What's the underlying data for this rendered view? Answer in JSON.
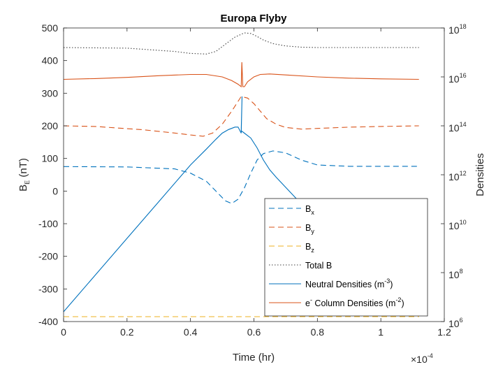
{
  "chart_data": {
    "type": "line",
    "title": "Europa Flyby",
    "xlabel": "Time (hr)",
    "x_exponent_label": "×10",
    "x_exponent_power": "-4",
    "ylabel_main": "B",
    "ylabel_sub": "E",
    "ylabel_unit": " (nT)",
    "ylabel_right": "Densities",
    "xlim": [
      0,
      0.00012
    ],
    "ylim_left": [
      -400,
      500
    ],
    "ylim_right_log10": [
      6,
      18
    ],
    "right_scale": "log",
    "grid": false,
    "legend_position": "bottom-right",
    "x_ticks": [
      {
        "value": 0,
        "label": "0"
      },
      {
        "value": 2e-05,
        "label": "0.2"
      },
      {
        "value": 4e-05,
        "label": "0.4"
      },
      {
        "value": 6e-05,
        "label": "0.6"
      },
      {
        "value": 8e-05,
        "label": "0.8"
      },
      {
        "value": 0.0001,
        "label": "1"
      },
      {
        "value": 0.00012,
        "label": "1.2"
      }
    ],
    "y_ticks_left": [
      {
        "value": 500,
        "label": "500"
      },
      {
        "value": 400,
        "label": "400"
      },
      {
        "value": 300,
        "label": "300"
      },
      {
        "value": 200,
        "label": "200"
      },
      {
        "value": 100,
        "label": "100"
      },
      {
        "value": 0,
        "label": "0"
      },
      {
        "value": -100,
        "label": "-100"
      },
      {
        "value": -200,
        "label": "-200"
      },
      {
        "value": -300,
        "label": "-300"
      },
      {
        "value": -400,
        "label": "-400"
      }
    ],
    "y_ticks_right": [
      {
        "exp": 18,
        "base": "10",
        "power": "18"
      },
      {
        "exp": 16,
        "base": "10",
        "power": "16"
      },
      {
        "exp": 14,
        "base": "10",
        "power": "14"
      },
      {
        "exp": 12,
        "base": "10",
        "power": "12"
      },
      {
        "exp": 10,
        "base": "10",
        "power": "10"
      },
      {
        "exp": 8,
        "base": "10",
        "power": "8"
      },
      {
        "exp": 6,
        "base": "10",
        "power": "6"
      }
    ],
    "series": [
      {
        "name_main": "B",
        "name_sub": "x",
        "name_sub_type": "sub",
        "name_tail": "",
        "axis": "left",
        "color": "#0072BD",
        "dash": "8,5",
        "x": [
          0,
          2e-05,
          3.5e-05,
          4e-05,
          4.5e-05,
          4.8e-05,
          5.1e-05,
          5.3e-05,
          5.5e-05,
          5.7e-05,
          5.9e-05,
          6.1e-05,
          6.3e-05,
          6.6e-05,
          7e-05,
          7.5e-05,
          8e-05,
          9e-05,
          0.0001,
          0.000112
        ],
        "y": [
          75,
          74,
          68,
          55,
          30,
          0,
          -30,
          -38,
          -25,
          10,
          55,
          95,
          115,
          123,
          117,
          95,
          80,
          76,
          76,
          76
        ]
      },
      {
        "name_main": "B",
        "name_sub": "y",
        "name_sub_type": "sub",
        "name_tail": "",
        "axis": "left",
        "color": "#D95319",
        "dash": "8,5",
        "x": [
          0,
          1e-05,
          2.5e-05,
          3.5e-05,
          4e-05,
          4.4e-05,
          4.7e-05,
          5e-05,
          5.3e-05,
          5.5e-05,
          5.6e-05,
          5.8e-05,
          6e-05,
          6.2e-05,
          6.4e-05,
          6.7e-05,
          7e-05,
          7.5e-05,
          8e-05,
          9e-05,
          0.0001,
          0.000112
        ],
        "y": [
          200,
          198,
          188,
          178,
          172,
          168,
          178,
          205,
          245,
          275,
          290,
          285,
          268,
          245,
          222,
          205,
          195,
          190,
          192,
          196,
          198,
          200
        ]
      },
      {
        "name_main": "B",
        "name_sub": "z",
        "name_sub_type": "sub",
        "name_tail": "",
        "axis": "left",
        "color": "#EDB120",
        "dash": "8,5",
        "x": [
          0,
          0.000112
        ],
        "y": [
          -385,
          -385
        ]
      },
      {
        "name_main": "Total B",
        "name_sub": "",
        "name_sub_type": "sub",
        "name_tail": "",
        "axis": "left",
        "color": "#404040",
        "dash": "1.5,2.5",
        "x": [
          0,
          2e-05,
          3.5e-05,
          4e-05,
          4.5e-05,
          4.8e-05,
          5.1e-05,
          5.4e-05,
          5.7e-05,
          5.9e-05,
          6.1e-05,
          6.3e-05,
          6.6e-05,
          7e-05,
          7.5e-05,
          8e-05,
          9e-05,
          0.0001,
          0.000112
        ],
        "y": [
          440,
          438,
          428,
          422,
          420,
          428,
          450,
          472,
          485,
          483,
          474,
          463,
          452,
          445,
          441,
          440,
          440,
          440,
          440
        ]
      },
      {
        "name_main": "Neutral Densities (m",
        "name_sub": "-3",
        "name_sub_type": "sup",
        "name_tail": ")",
        "axis": "right",
        "color": "#0072BD",
        "dash": "",
        "x": [
          0,
          1e-05,
          2e-05,
          3e-05,
          4e-05,
          4.5e-05,
          4.8e-05,
          5e-05,
          5.2e-05,
          5.4e-05,
          5.5e-05,
          5.6e-05,
          5.625e-05,
          5.6e-05,
          5.7e-05,
          5.9e-05,
          6.1e-05,
          6.3e-05,
          6.5e-05,
          6.7e-05,
          7.5e-05,
          8.5e-05,
          9.5e-05,
          0.000105,
          0.000112
        ],
        "y_log10": [
          6.4,
          7.9,
          9.4,
          10.9,
          12.4,
          13.05,
          13.45,
          13.7,
          13.85,
          13.95,
          13.95,
          13.7,
          15.2,
          13.8,
          13.7,
          13.5,
          13.1,
          12.6,
          12.2,
          11.9,
          10.8,
          9.35,
          7.9,
          6.5,
          6.4
        ]
      },
      {
        "name_main": "e",
        "name_sub": "-",
        "name_sub_type": "sup",
        "name_tail": " Column Densities (m",
        "name_sub2": "-2",
        "name_tail2": ")",
        "axis": "right",
        "color": "#D95319",
        "dash": "",
        "x": [
          0,
          1e-05,
          2e-05,
          3e-05,
          4e-05,
          4.5e-05,
          5e-05,
          5.3e-05,
          5.5e-05,
          5.6e-05,
          5.62e-05,
          5.65e-05,
          5.7e-05,
          5.8e-05,
          6e-05,
          6.2e-05,
          6.5e-05,
          7e-05,
          8e-05,
          9e-05,
          0.0001,
          0.000112
        ],
        "y_log10": [
          15.9,
          15.93,
          15.98,
          16.05,
          16.1,
          16.1,
          16.0,
          15.85,
          15.7,
          15.6,
          16.6,
          15.6,
          15.6,
          15.8,
          16.0,
          16.1,
          16.12,
          16.08,
          16.0,
          15.95,
          15.92,
          15.9
        ]
      }
    ]
  }
}
